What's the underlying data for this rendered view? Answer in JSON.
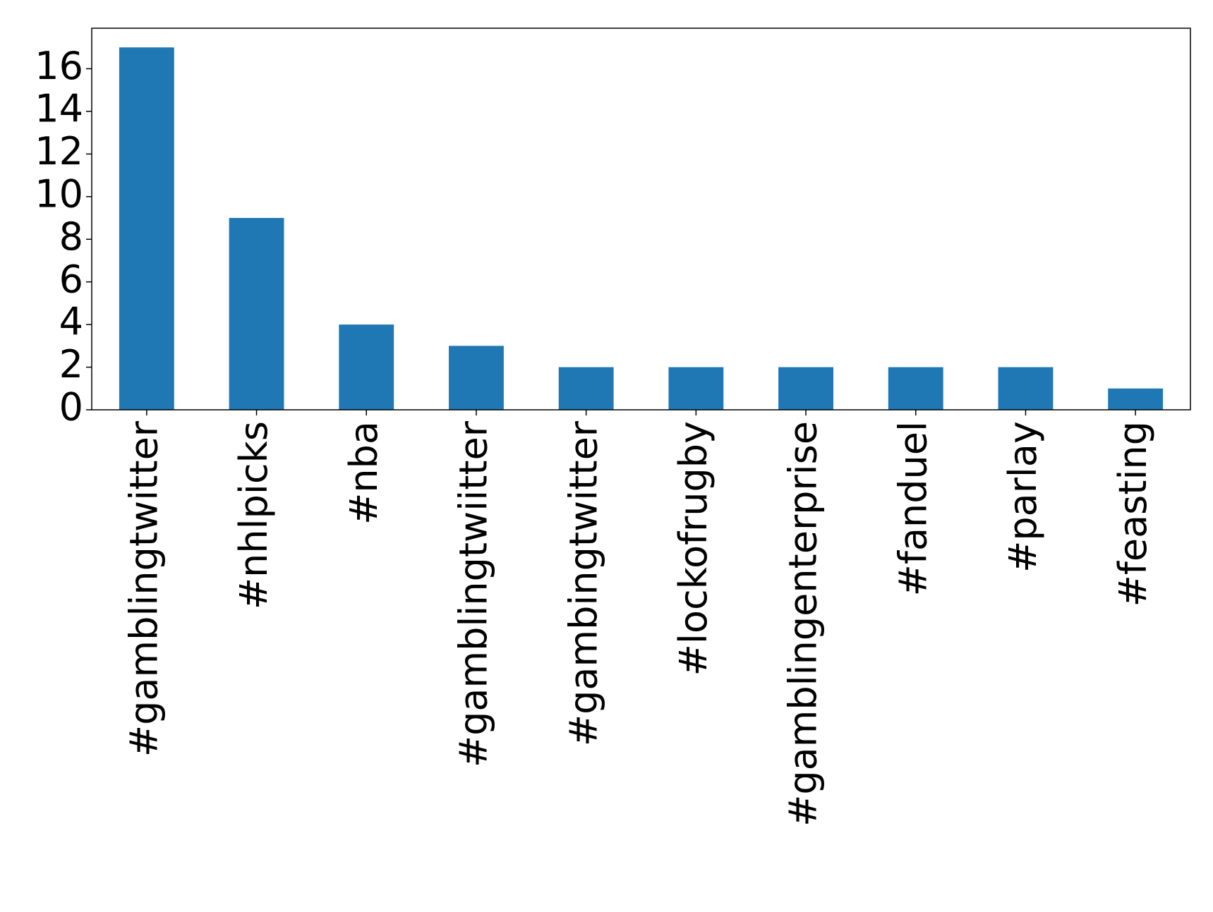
{
  "chart_data": {
    "type": "bar",
    "categories": [
      "#gamblingtwitter",
      "#nhlpicks",
      "#nba",
      "#gamblingtwiitter",
      "#gambingtwitter",
      "#lockofrugby",
      "#gamblingenterprise",
      "#fanduel",
      "#parlay",
      "#feasting"
    ],
    "values": [
      17,
      9,
      4,
      3,
      2,
      2,
      2,
      2,
      2,
      1
    ],
    "color": "#1f77b4",
    "ylim": [
      0,
      17.9
    ],
    "yticks": [
      0,
      2,
      4,
      6,
      8,
      10,
      12,
      14,
      16
    ],
    "grid": false
  }
}
